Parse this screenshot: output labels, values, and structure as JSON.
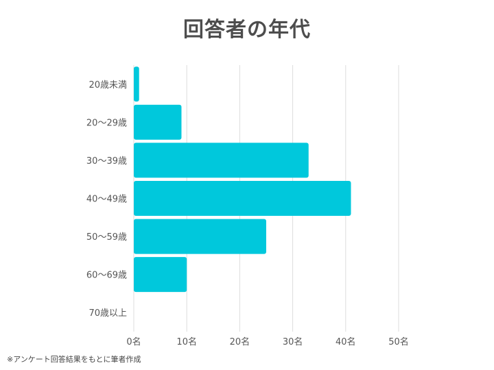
{
  "chart_data": {
    "type": "bar",
    "orientation": "horizontal",
    "title": "回答者の年代",
    "categories": [
      "20歳未満",
      "20～29歳",
      "30～39歳",
      "40～49歳",
      "50～59歳",
      "60～69歳",
      "70歳以上"
    ],
    "values": [
      1,
      9,
      33,
      41,
      25,
      10,
      0
    ],
    "x_ticks": [
      "0名",
      "10名",
      "20名",
      "30名",
      "40名",
      "50名"
    ],
    "xlim": [
      0,
      50
    ],
    "grid": true,
    "bar_color": "#00c8dc",
    "gridline_color": "#dddddd"
  },
  "footnote": "※アンケート回答結果をもとに筆者作成"
}
